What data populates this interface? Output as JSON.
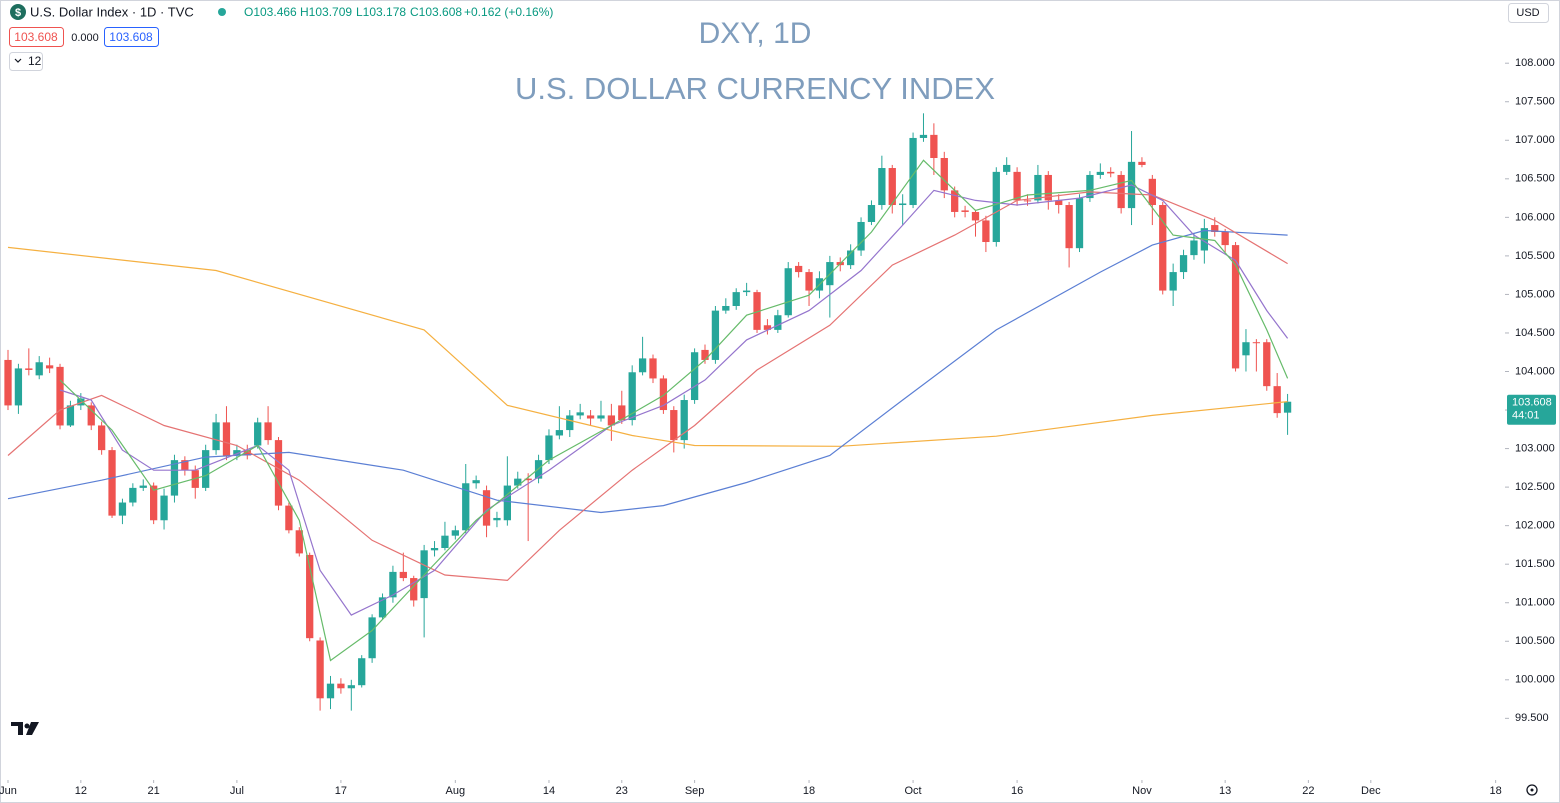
{
  "header": {
    "symbol": "U.S. Dollar Index · 1D · TVC",
    "open": "O103.466",
    "high": "H103.709",
    "low": "L103.178",
    "close": "C103.608",
    "change": "+0.162 (+0.16%)",
    "sell_price": "103.608",
    "spread": "0.000",
    "buy_price": "103.608",
    "indicator_count": "12",
    "currency": "USD"
  },
  "price_label": {
    "price": "103.608",
    "countdown": "44:01"
  },
  "chart_data": {
    "type": "candlestick",
    "title": "DXY, 1D",
    "subtitle": "U.S. DOLLAR CURRENCY INDEX",
    "up_color": "#26a69a",
    "down_color": "#ef5350",
    "xlim": [
      -0.77,
      143.9
    ],
    "ylim": [
      98.7,
      108.82
    ],
    "xticks": [
      {
        "value": 0,
        "label": "Jun"
      },
      {
        "value": 7,
        "label": "12"
      },
      {
        "value": 14,
        "label": "21"
      },
      {
        "value": 22,
        "label": "Jul"
      },
      {
        "value": 32,
        "label": "17"
      },
      {
        "value": 43,
        "label": "Aug"
      },
      {
        "value": 52,
        "label": "14"
      },
      {
        "value": 59,
        "label": "23"
      },
      {
        "value": 66,
        "label": "Sep"
      },
      {
        "value": 77,
        "label": "18"
      },
      {
        "value": 87,
        "label": "Oct"
      },
      {
        "value": 97,
        "label": "16"
      },
      {
        "value": 109,
        "label": "Nov"
      },
      {
        "value": 117,
        "label": "13"
      },
      {
        "value": 125,
        "label": "22"
      },
      {
        "value": 131,
        "label": "Dec"
      },
      {
        "value": 143,
        "label": "18"
      }
    ],
    "yticks": [
      {
        "value": 99.5,
        "label": "99.500"
      },
      {
        "value": 100,
        "label": "100.000"
      },
      {
        "value": 100.5,
        "label": "100.500"
      },
      {
        "value": 101,
        "label": "101.000"
      },
      {
        "value": 101.5,
        "label": "101.500"
      },
      {
        "value": 102,
        "label": "102.000"
      },
      {
        "value": 102.5,
        "label": "102.500"
      },
      {
        "value": 103,
        "label": "103.000"
      },
      {
        "value": 103.5,
        "label": "103.500"
      },
      {
        "value": 104,
        "label": "104.000"
      },
      {
        "value": 104.5,
        "label": "104.500"
      },
      {
        "value": 105,
        "label": "105.000"
      },
      {
        "value": 105.5,
        "label": "105.500"
      },
      {
        "value": 106,
        "label": "106.000"
      },
      {
        "value": 106.5,
        "label": "106.500"
      },
      {
        "value": 107,
        "label": "107.000"
      },
      {
        "value": 107.5,
        "label": "107.500"
      },
      {
        "value": 108,
        "label": "108.000"
      }
    ],
    "open": [
      104.15,
      103.56,
      104.04,
      103.95,
      104.08,
      104.06,
      103.3,
      103.56,
      103.56,
      103.3,
      102.98,
      102.13,
      102.3,
      102.49,
      102.52,
      102.07,
      102.39,
      102.85,
      102.72,
      102.49,
      102.98,
      103.34,
      102.91,
      102.98,
      103.04,
      103.34,
      103.11,
      102.26,
      101.94,
      101.62,
      100.51,
      99.76,
      99.95,
      99.89,
      99.93,
      100.28,
      100.81,
      101.07,
      101.4,
      101.32,
      101.06,
      101.68,
      101.71,
      101.87,
      101.94,
      102.55,
      102.46,
      102.07,
      102.07,
      102.52,
      102.61,
      102.61,
      102.85,
      103.17,
      103.24,
      103.43,
      103.43,
      103.39,
      103.43,
      103.56,
      103.37,
      103.99,
      104.17,
      103.91,
      103.5,
      103.11,
      103.63,
      104.28,
      104.15,
      104.79,
      104.85,
      105.03,
      105.03,
      104.6,
      104.54,
      104.73,
      105.37,
      105.29,
      105.05,
      105.12,
      105.42,
      105.38,
      105.57,
      105.94,
      106.16,
      106.64,
      106.16,
      106.16,
      107.03,
      107.07,
      106.77,
      106.35,
      106.09,
      106.07,
      105.96,
      105.68,
      106.59,
      106.59,
      106.22,
      106.22,
      106.55,
      106.22,
      106.16,
      105.6,
      106.25,
      106.55,
      106.59,
      106.55,
      106.12,
      106.72,
      106.5,
      106.16,
      105.05,
      105.29,
      105.51,
      105.57,
      105.9,
      105.81,
      105.64,
      104.21,
      104.38,
      104.38,
      103.81,
      103.466
    ],
    "high": [
      104.28,
      104.1,
      104.3,
      104.2,
      104.18,
      104.1,
      103.62,
      103.72,
      103.6,
      103.35,
      103.02,
      102.35,
      102.55,
      102.6,
      102.56,
      102.48,
      102.92,
      102.9,
      102.78,
      103.05,
      103.45,
      103.55,
      103.05,
      103.05,
      103.4,
      103.55,
      103.15,
      102.3,
      101.98,
      101.65,
      100.55,
      100.05,
      100.02,
      100.0,
      100.32,
      100.85,
      101.12,
      101.48,
      101.65,
      101.35,
      101.75,
      101.8,
      102.05,
      102.0,
      102.8,
      102.65,
      102.52,
      102.18,
      102.9,
      102.7,
      102.68,
      102.92,
      103.25,
      103.55,
      103.5,
      103.58,
      103.5,
      103.62,
      103.58,
      103.75,
      104.08,
      104.45,
      104.22,
      103.95,
      103.55,
      103.7,
      104.3,
      104.35,
      104.85,
      104.95,
      105.08,
      105.15,
      105.06,
      104.68,
      104.8,
      105.42,
      105.42,
      105.33,
      105.3,
      105.5,
      105.48,
      105.65,
      106.0,
      106.22,
      106.8,
      106.68,
      106.3,
      107.1,
      107.35,
      107.22,
      106.85,
      106.4,
      106.15,
      106.1,
      106.02,
      106.65,
      106.78,
      106.65,
      106.3,
      106.68,
      106.6,
      106.3,
      106.2,
      106.3,
      106.6,
      106.7,
      106.65,
      106.6,
      107.12,
      106.78,
      106.55,
      106.2,
      105.4,
      105.58,
      105.8,
      105.98,
      106.0,
      105.85,
      105.68,
      104.55,
      104.42,
      104.42,
      103.98,
      103.709
    ],
    "low": [
      103.5,
      103.45,
      103.95,
      103.9,
      103.98,
      103.25,
      103.28,
      103.5,
      103.24,
      102.92,
      102.1,
      102.02,
      102.25,
      102.45,
      102.02,
      101.95,
      102.3,
      102.65,
      102.35,
      102.45,
      102.92,
      102.85,
      102.85,
      102.86,
      103.0,
      103.05,
      102.2,
      101.9,
      101.6,
      100.5,
      99.6,
      99.62,
      99.82,
      99.6,
      99.9,
      100.22,
      100.78,
      101.0,
      101.28,
      100.95,
      100.55,
      101.6,
      101.68,
      101.82,
      101.9,
      102.48,
      101.85,
      101.98,
      102.0,
      102.48,
      101.8,
      102.55,
      102.8,
      103.12,
      103.15,
      103.38,
      103.3,
      103.35,
      103.1,
      103.32,
      103.3,
      103.95,
      103.85,
      103.45,
      102.95,
      103.0,
      103.58,
      104.1,
      104.1,
      104.75,
      104.8,
      104.98,
      104.5,
      104.48,
      104.5,
      104.7,
      105.22,
      104.85,
      104.95,
      104.7,
      105.3,
      105.33,
      105.5,
      105.9,
      106.1,
      106.05,
      105.9,
      106.12,
      106.98,
      106.55,
      106.25,
      106.0,
      106.0,
      105.75,
      105.55,
      105.62,
      106.55,
      106.15,
      106.15,
      106.18,
      106.1,
      106.05,
      105.35,
      105.55,
      106.2,
      106.5,
      106.52,
      106.05,
      105.9,
      106.65,
      105.9,
      105.0,
      104.85,
      105.2,
      105.45,
      105.4,
      105.75,
      105.55,
      104.0,
      104.0,
      104.0,
      103.75,
      103.4,
      103.178
    ],
    "close": [
      103.56,
      104.04,
      104.02,
      104.12,
      104.04,
      103.3,
      103.56,
      103.65,
      103.3,
      102.98,
      102.13,
      102.3,
      102.49,
      102.52,
      102.07,
      102.39,
      102.85,
      102.72,
      102.49,
      102.98,
      103.34,
      102.91,
      102.98,
      102.91,
      103.34,
      103.11,
      102.26,
      101.94,
      101.64,
      100.54,
      99.76,
      99.95,
      99.89,
      99.93,
      100.28,
      100.81,
      101.07,
      101.4,
      101.32,
      101.03,
      101.68,
      101.71,
      101.87,
      101.94,
      102.55,
      102.59,
      102.0,
      102.1,
      102.52,
      102.61,
      102.59,
      102.85,
      103.17,
      103.24,
      103.43,
      103.47,
      103.39,
      103.43,
      103.3,
      103.37,
      103.99,
      104.17,
      103.91,
      103.5,
      103.11,
      103.63,
      104.25,
      104.15,
      104.79,
      104.85,
      105.03,
      105.05,
      104.54,
      104.54,
      104.73,
      105.34,
      105.29,
      105.05,
      105.21,
      105.42,
      105.38,
      105.57,
      105.94,
      106.16,
      106.64,
      106.16,
      106.18,
      107.03,
      107.07,
      106.77,
      106.35,
      106.07,
      106.07,
      105.96,
      105.68,
      106.59,
      106.68,
      106.22,
      106.21,
      106.55,
      106.22,
      106.16,
      105.6,
      106.25,
      106.55,
      106.59,
      106.57,
      106.12,
      106.72,
      106.68,
      106.16,
      105.05,
      105.29,
      105.51,
      105.7,
      105.86,
      105.81,
      105.64,
      104.04,
      104.38,
      104.37,
      103.81,
      103.46,
      103.608
    ],
    "series": [
      {
        "color": "#f5b041",
        "x": [
          0,
          20,
          40,
          48,
          60,
          66,
          80,
          95,
          110,
          123
        ],
        "values": [
          105.61,
          105.31,
          104.54,
          103.56,
          103.17,
          103.04,
          103.03,
          103.16,
          103.43,
          103.61
        ]
      },
      {
        "color": "#5b7fd4",
        "x": [
          0,
          9,
          19,
          27,
          38,
          47,
          57,
          63,
          71,
          79,
          86,
          95,
          105,
          110,
          115,
          123
        ],
        "values": [
          102.35,
          102.59,
          102.89,
          102.95,
          102.72,
          102.33,
          102.17,
          102.26,
          102.56,
          102.91,
          103.63,
          104.54,
          105.29,
          105.64,
          105.83,
          105.77
        ]
      },
      {
        "color": "#e57373",
        "x": [
          0,
          5,
          9,
          15,
          22,
          28,
          35,
          42,
          48,
          53,
          60,
          66,
          72,
          79,
          85,
          91,
          97,
          104,
          110,
          116,
          123
        ],
        "values": [
          102.91,
          103.5,
          103.69,
          103.3,
          103.04,
          102.59,
          101.81,
          101.36,
          101.29,
          101.94,
          102.72,
          103.3,
          104.02,
          104.6,
          105.38,
          105.77,
          106.22,
          106.33,
          106.29,
          105.96,
          105.4
        ]
      },
      {
        "color": "#9575cd",
        "x": [
          5,
          8,
          11,
          14,
          18,
          24,
          27,
          30,
          33,
          37,
          41,
          46,
          52,
          58,
          63,
          67,
          71,
          77,
          82,
          86,
          89,
          93,
          97,
          103,
          108,
          111,
          114,
          118,
          121,
          123
        ],
        "values": [
          103.76,
          103.63,
          102.98,
          102.72,
          102.72,
          103.04,
          102.72,
          101.42,
          100.84,
          101.1,
          101.42,
          102.2,
          102.72,
          103.3,
          103.56,
          103.89,
          104.41,
          104.79,
          105.31,
          105.9,
          106.35,
          106.22,
          106.16,
          106.25,
          106.42,
          106.22,
          105.77,
          105.44,
          104.79,
          104.43
        ]
      },
      {
        "color": "#66bb6a",
        "x": [
          5,
          10,
          14,
          19,
          24,
          28,
          31,
          35,
          40,
          45,
          52,
          58,
          63,
          67,
          71,
          77,
          83,
          88,
          93,
          98,
          104,
          108,
          112,
          116,
          118,
          121,
          123
        ],
        "values": [
          103.89,
          103.24,
          102.46,
          102.65,
          103.04,
          102.07,
          100.25,
          100.64,
          101.36,
          102.07,
          102.85,
          103.3,
          103.69,
          104.15,
          104.73,
          104.99,
          105.81,
          106.74,
          106.09,
          106.29,
          106.35,
          106.48,
          105.77,
          105.7,
          105.38,
          104.54,
          103.91
        ]
      }
    ]
  }
}
